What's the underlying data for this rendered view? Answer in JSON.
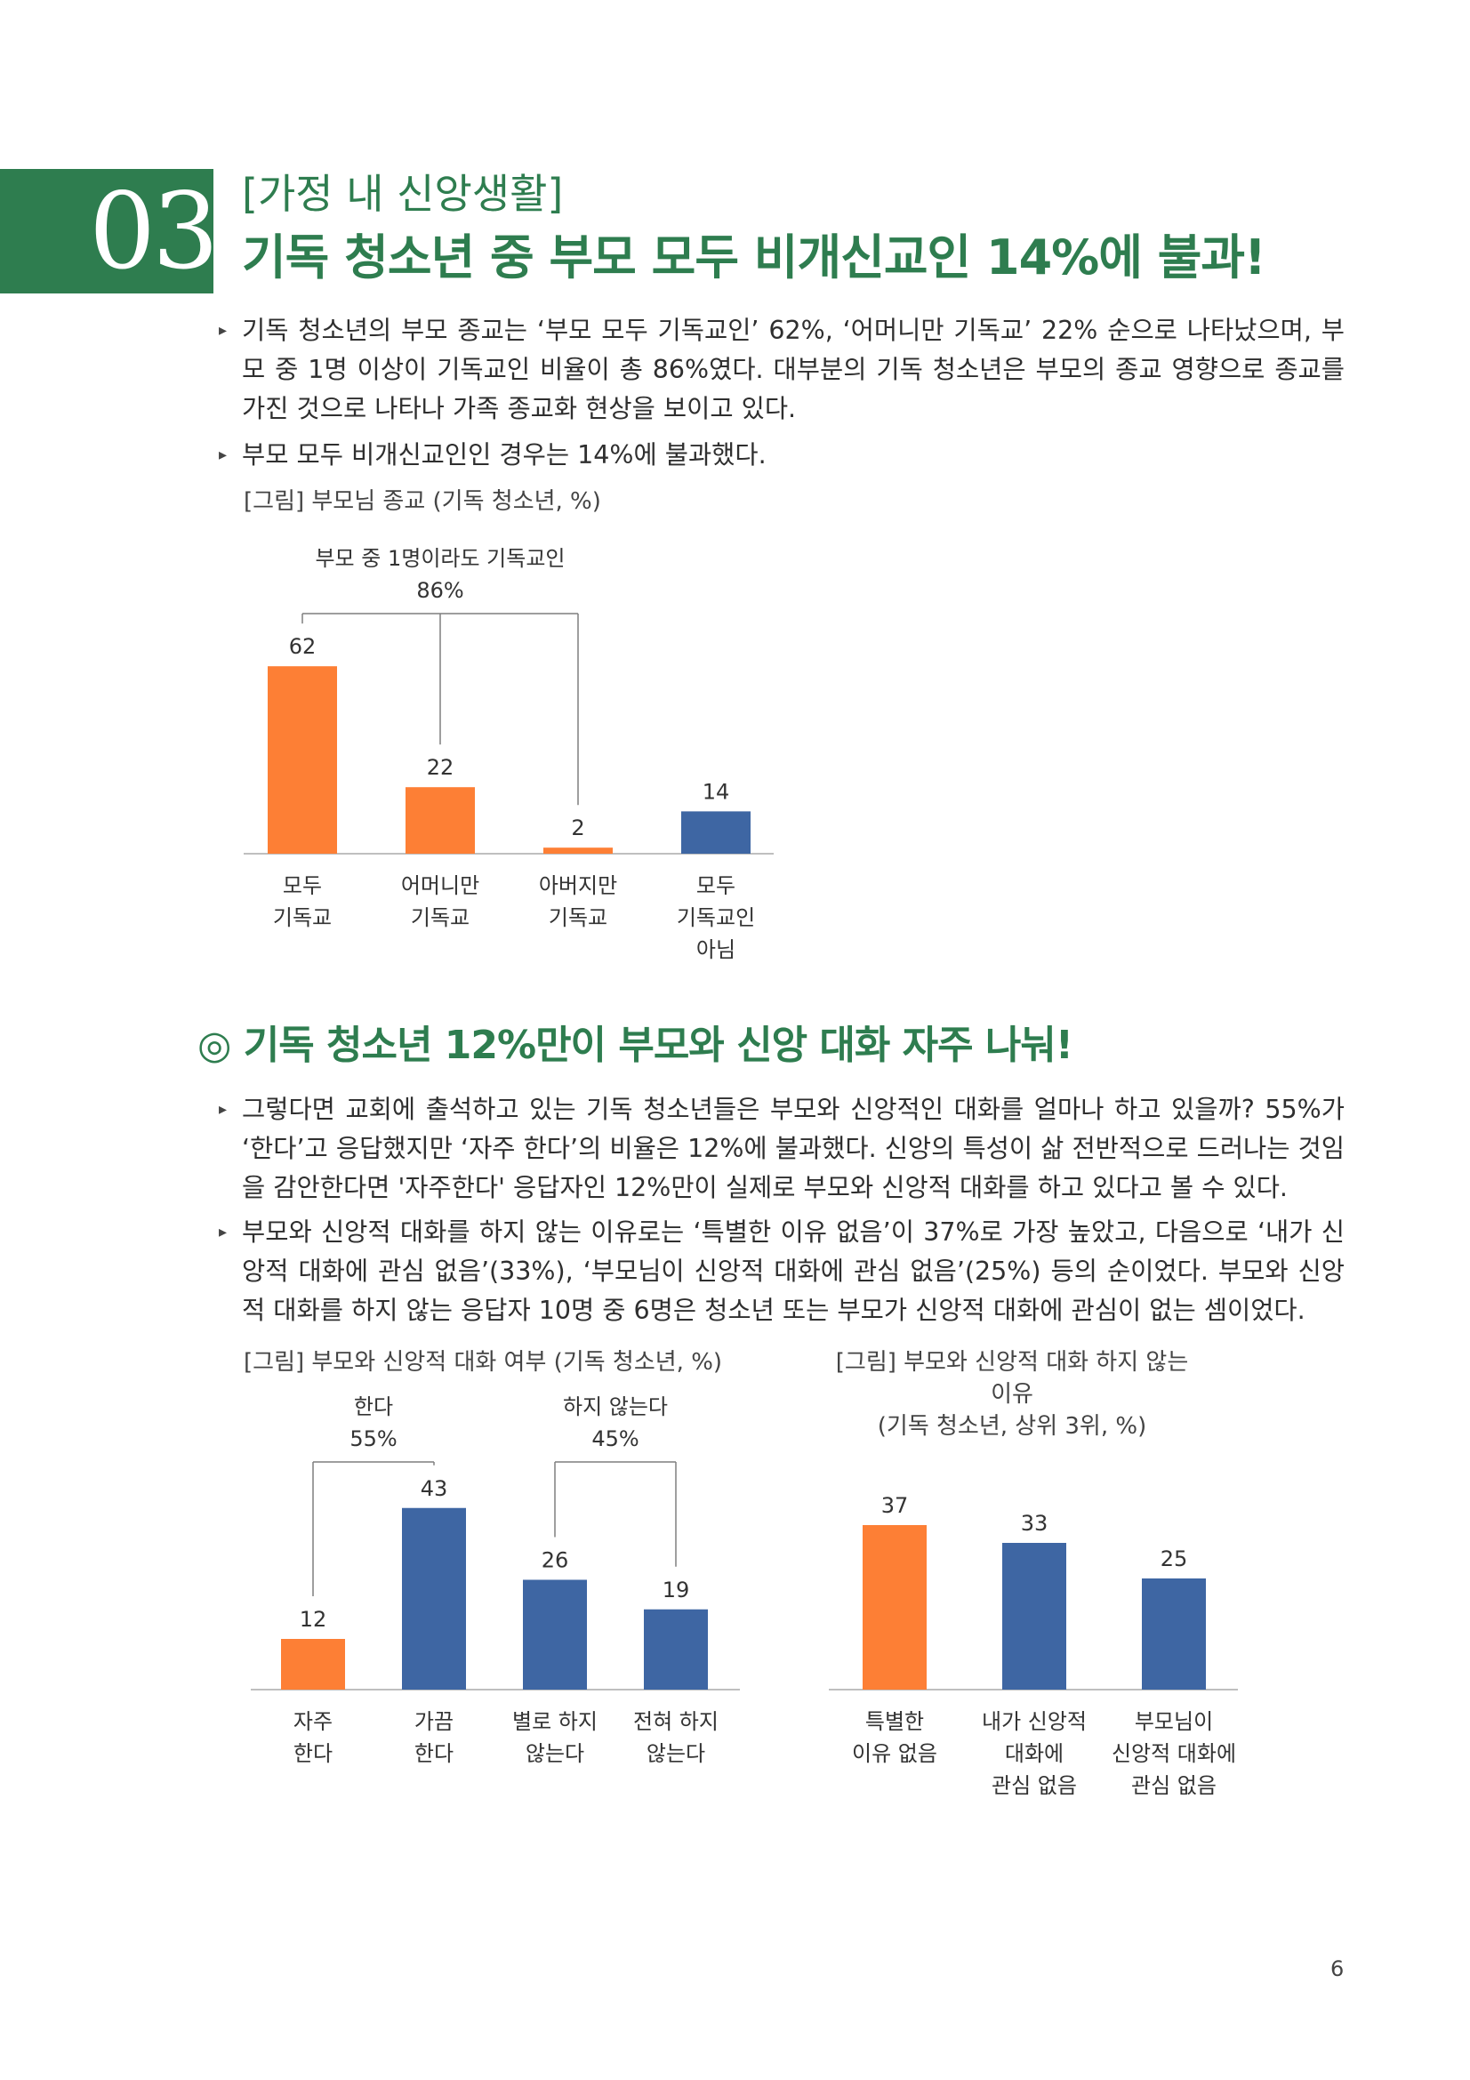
{
  "section": {
    "number": "03",
    "subtitle": "[가정 내 신앙생활]",
    "title": "기독 청소년 중 부모 모두 비개신교인 14%에 불과!"
  },
  "bullets_top": [
    "기독 청소년의 부모 종교는 ‘부모 모두 기독교인’ 62%, ‘어머니만 기독교’ 22% 순으로 나타났으며, 부모 중 1명 이상이 기독교인 비율이 총 86%였다. 대부분의 기독 청소년은 부모의 종교 영향으로 종교를 가진 것으로 나타나 가족 종교화 현상을 보이고 있다.",
    "부모 모두 비개신교인인 경우는 14%에 불과했다."
  ],
  "heading2": "◎ 기독 청소년 12%만이 부모와 신앙 대화 자주 나눠!",
  "bullets_bottom": [
    "그렇다면 교회에 출석하고 있는 기독 청소년들은 부모와 신앙적인 대화를 얼마나 하고 있을까? 55%가 ‘한다’고 응답했지만 ‘자주 한다’의 비율은 12%에 불과했다. 신앙의 특성이 삶 전반적으로 드러나는 것임을 감안한다면 '자주한다' 응답자인 12%만이 실제로 부모와 신앙적 대화를 하고 있다고 볼 수 있다.",
    "부모와 신앙적 대화를 하지 않는 이유로는 ‘특별한 이유 없음’이 37%로 가장 높았고, 다음으로 ‘내가 신앙적 대화에 관심 없음’(33%), ‘부모님이 신앙적 대화에 관심 없음’(25%) 등의 순이었다. 부모와 신앙적 대화를 하지 않는 응답자 10명 중 6명은 청소년 또는 부모가 신앙적 대화에 관심이 없는 셈이었다."
  ],
  "colors": {
    "green": "#2e7d4f",
    "orange": "#fd7f35",
    "blue": "#3e66a3"
  },
  "chart_data": [
    {
      "type": "bar",
      "caption": "[그림] 부모님 종교 (기독 청소년, %)",
      "categories": [
        [
          "모두",
          "기독교"
        ],
        [
          "어머니만",
          "기독교"
        ],
        [
          "아버지만",
          "기독교"
        ],
        [
          "모두",
          "기독교인",
          "아님"
        ]
      ],
      "values": [
        62,
        22,
        2,
        14
      ],
      "colors": [
        "orange",
        "orange",
        "orange",
        "blue"
      ],
      "bracket": {
        "label": "부모 중 1명이라도 기독교인",
        "value": "86%",
        "spans": [
          0,
          2
        ]
      }
    },
    {
      "type": "bar",
      "caption": "[그림] 부모와 신앙적 대화 여부 (기독 청소년, %)",
      "categories": [
        [
          "자주",
          "한다"
        ],
        [
          "가끔",
          "한다"
        ],
        [
          "별로 하지",
          "않는다"
        ],
        [
          "전혀 하지",
          "않는다"
        ]
      ],
      "values": [
        12,
        43,
        26,
        19
      ],
      "colors": [
        "orange",
        "blue",
        "blue",
        "blue"
      ],
      "brackets": [
        {
          "label": "한다",
          "value": "55%",
          "spans": [
            0,
            1
          ]
        },
        {
          "label": "하지 않는다",
          "value": "45%",
          "spans": [
            2,
            3
          ]
        }
      ]
    },
    {
      "type": "bar",
      "caption": [
        "[그림] 부모와 신앙적 대화 하지 않는 이유",
        "(기독 청소년, 상위 3위, %)"
      ],
      "categories": [
        [
          "특별한",
          "이유 없음"
        ],
        [
          "내가 신앙적",
          "대화에",
          "관심 없음"
        ],
        [
          "부모님이",
          "신앙적 대화에",
          "관심 없음"
        ]
      ],
      "values": [
        37,
        33,
        25
      ],
      "colors": [
        "orange",
        "blue",
        "blue"
      ]
    }
  ],
  "page_number": "6"
}
